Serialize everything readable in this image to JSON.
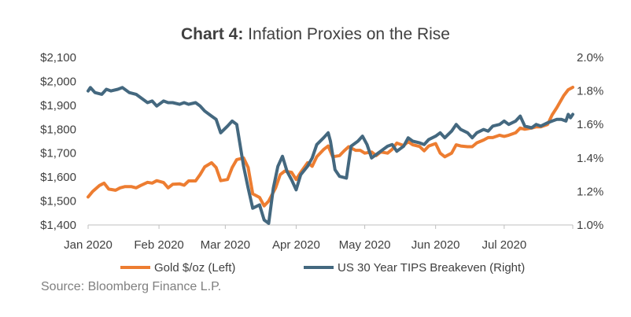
{
  "chart_data": {
    "type": "line",
    "title_bold": "Chart 4:",
    "title_rest": " Infation Proxies on the Rise",
    "xlabel": "",
    "x_ticks": [
      "Jan 2020",
      "Feb 2020",
      "Mar 2020",
      "Apr 2020",
      "May 2020",
      "Jun 2020",
      "Jul 2020"
    ],
    "y_left_ticks": [
      "$2,100",
      "$2,000",
      "$1,900",
      "$1,800",
      "$1,700",
      "$1,600",
      "$1,500",
      "$1,400"
    ],
    "y_right_ticks": [
      "2.0%",
      "1.8%",
      "1.6%",
      "1.4%",
      "1.2%",
      "1.0%"
    ],
    "ylim_left": [
      1400,
      2100
    ],
    "ylim_right": [
      1.0,
      2.0
    ],
    "xlim": [
      "2020-01-01",
      "2020-07-31"
    ],
    "legend_position": "bottom",
    "series": [
      {
        "name": "Gold $/oz (Left)",
        "axis": "left",
        "color": "#ed7d31",
        "points": [
          [
            "2020-01-01",
            1517
          ],
          [
            "2020-01-03",
            1540
          ],
          [
            "2020-01-06",
            1565
          ],
          [
            "2020-01-08",
            1575
          ],
          [
            "2020-01-10",
            1550
          ],
          [
            "2020-01-13",
            1545
          ],
          [
            "2020-01-15",
            1555
          ],
          [
            "2020-01-17",
            1560
          ],
          [
            "2020-01-20",
            1560
          ],
          [
            "2020-01-22",
            1555
          ],
          [
            "2020-01-24",
            1565
          ],
          [
            "2020-01-27",
            1578
          ],
          [
            "2020-01-29",
            1575
          ],
          [
            "2020-01-31",
            1585
          ],
          [
            "2020-02-03",
            1577
          ],
          [
            "2020-02-05",
            1555
          ],
          [
            "2020-02-07",
            1570
          ],
          [
            "2020-02-10",
            1572
          ],
          [
            "2020-02-12",
            1566
          ],
          [
            "2020-02-14",
            1584
          ],
          [
            "2020-02-17",
            1584
          ],
          [
            "2020-02-19",
            1611
          ],
          [
            "2020-02-21",
            1643
          ],
          [
            "2020-02-24",
            1660
          ],
          [
            "2020-02-26",
            1640
          ],
          [
            "2020-02-28",
            1585
          ],
          [
            "2020-03-02",
            1590
          ],
          [
            "2020-03-04",
            1640
          ],
          [
            "2020-03-06",
            1673
          ],
          [
            "2020-03-09",
            1680
          ],
          [
            "2020-03-11",
            1640
          ],
          [
            "2020-03-13",
            1530
          ],
          [
            "2020-03-16",
            1515
          ],
          [
            "2020-03-18",
            1480
          ],
          [
            "2020-03-20",
            1500
          ],
          [
            "2020-03-23",
            1555
          ],
          [
            "2020-03-25",
            1610
          ],
          [
            "2020-03-27",
            1625
          ],
          [
            "2020-03-30",
            1620
          ],
          [
            "2020-04-01",
            1590
          ],
          [
            "2020-04-03",
            1620
          ],
          [
            "2020-04-06",
            1660
          ],
          [
            "2020-04-08",
            1645
          ],
          [
            "2020-04-10",
            1685
          ],
          [
            "2020-04-13",
            1715
          ],
          [
            "2020-04-15",
            1730
          ],
          [
            "2020-04-17",
            1685
          ],
          [
            "2020-04-20",
            1690
          ],
          [
            "2020-04-22",
            1710
          ],
          [
            "2020-04-24",
            1727
          ],
          [
            "2020-04-27",
            1712
          ],
          [
            "2020-04-29",
            1712
          ],
          [
            "2020-05-01",
            1700
          ],
          [
            "2020-05-04",
            1705
          ],
          [
            "2020-05-06",
            1690
          ],
          [
            "2020-05-08",
            1705
          ],
          [
            "2020-05-11",
            1700
          ],
          [
            "2020-05-13",
            1716
          ],
          [
            "2020-05-15",
            1742
          ],
          [
            "2020-05-18",
            1732
          ],
          [
            "2020-05-20",
            1748
          ],
          [
            "2020-05-22",
            1735
          ],
          [
            "2020-05-25",
            1728
          ],
          [
            "2020-05-27",
            1710
          ],
          [
            "2020-05-29",
            1730
          ],
          [
            "2020-06-01",
            1740
          ],
          [
            "2020-06-03",
            1700
          ],
          [
            "2020-06-05",
            1685
          ],
          [
            "2020-06-08",
            1700
          ],
          [
            "2020-06-10",
            1735
          ],
          [
            "2020-06-12",
            1730
          ],
          [
            "2020-06-15",
            1727
          ],
          [
            "2020-06-17",
            1727
          ],
          [
            "2020-06-19",
            1743
          ],
          [
            "2020-06-22",
            1755
          ],
          [
            "2020-06-24",
            1765
          ],
          [
            "2020-06-26",
            1765
          ],
          [
            "2020-06-29",
            1775
          ],
          [
            "2020-07-01",
            1770
          ],
          [
            "2020-07-03",
            1775
          ],
          [
            "2020-07-06",
            1785
          ],
          [
            "2020-07-08",
            1805
          ],
          [
            "2020-07-10",
            1800
          ],
          [
            "2020-07-13",
            1805
          ],
          [
            "2020-07-15",
            1810
          ],
          [
            "2020-07-17",
            1810
          ],
          [
            "2020-07-20",
            1820
          ],
          [
            "2020-07-22",
            1860
          ],
          [
            "2020-07-24",
            1890
          ],
          [
            "2020-07-27",
            1940
          ],
          [
            "2020-07-29",
            1965
          ],
          [
            "2020-07-31",
            1975
          ]
        ]
      },
      {
        "name": "US 30 Year TIPS Breakeven (Right)",
        "axis": "right",
        "color": "#44687f",
        "points": [
          [
            "2020-01-01",
            1.8
          ],
          [
            "2020-01-02",
            1.82
          ],
          [
            "2020-01-04",
            1.79
          ],
          [
            "2020-01-07",
            1.78
          ],
          [
            "2020-01-09",
            1.81
          ],
          [
            "2020-01-11",
            1.8
          ],
          [
            "2020-01-14",
            1.81
          ],
          [
            "2020-01-16",
            1.82
          ],
          [
            "2020-01-19",
            1.79
          ],
          [
            "2020-01-22",
            1.78
          ],
          [
            "2020-01-24",
            1.76
          ],
          [
            "2020-01-27",
            1.73
          ],
          [
            "2020-01-29",
            1.74
          ],
          [
            "2020-01-31",
            1.71
          ],
          [
            "2020-02-03",
            1.74
          ],
          [
            "2020-02-05",
            1.73
          ],
          [
            "2020-02-07",
            1.73
          ],
          [
            "2020-02-10",
            1.72
          ],
          [
            "2020-02-12",
            1.73
          ],
          [
            "2020-02-14",
            1.72
          ],
          [
            "2020-02-17",
            1.73
          ],
          [
            "2020-02-19",
            1.71
          ],
          [
            "2020-02-21",
            1.68
          ],
          [
            "2020-02-24",
            1.65
          ],
          [
            "2020-02-26",
            1.63
          ],
          [
            "2020-02-28",
            1.55
          ],
          [
            "2020-03-02",
            1.59
          ],
          [
            "2020-03-04",
            1.62
          ],
          [
            "2020-03-06",
            1.6
          ],
          [
            "2020-03-09",
            1.35
          ],
          [
            "2020-03-11",
            1.22
          ],
          [
            "2020-03-13",
            1.1
          ],
          [
            "2020-03-16",
            1.12
          ],
          [
            "2020-03-18",
            1.03
          ],
          [
            "2020-03-20",
            1.01
          ],
          [
            "2020-03-22",
            1.22
          ],
          [
            "2020-03-24",
            1.35
          ],
          [
            "2020-03-26",
            1.41
          ],
          [
            "2020-03-28",
            1.32
          ],
          [
            "2020-03-30",
            1.27
          ],
          [
            "2020-04-01",
            1.21
          ],
          [
            "2020-04-03",
            1.3
          ],
          [
            "2020-04-06",
            1.35
          ],
          [
            "2020-04-08",
            1.4
          ],
          [
            "2020-04-10",
            1.48
          ],
          [
            "2020-04-13",
            1.52
          ],
          [
            "2020-04-15",
            1.55
          ],
          [
            "2020-04-16",
            1.5
          ],
          [
            "2020-04-18",
            1.33
          ],
          [
            "2020-04-20",
            1.29
          ],
          [
            "2020-04-23",
            1.28
          ],
          [
            "2020-04-25",
            1.47
          ],
          [
            "2020-04-28",
            1.5
          ],
          [
            "2020-04-30",
            1.53
          ],
          [
            "2020-05-02",
            1.48
          ],
          [
            "2020-05-04",
            1.4
          ],
          [
            "2020-05-06",
            1.42
          ],
          [
            "2020-05-08",
            1.44
          ],
          [
            "2020-05-11",
            1.47
          ],
          [
            "2020-05-13",
            1.48
          ],
          [
            "2020-05-15",
            1.44
          ],
          [
            "2020-05-18",
            1.47
          ],
          [
            "2020-05-20",
            1.52
          ],
          [
            "2020-05-22",
            1.5
          ],
          [
            "2020-05-25",
            1.49
          ],
          [
            "2020-05-27",
            1.48
          ],
          [
            "2020-05-29",
            1.51
          ],
          [
            "2020-06-01",
            1.53
          ],
          [
            "2020-06-03",
            1.55
          ],
          [
            "2020-06-05",
            1.52
          ],
          [
            "2020-06-08",
            1.56
          ],
          [
            "2020-06-10",
            1.6
          ],
          [
            "2020-06-12",
            1.57
          ],
          [
            "2020-06-15",
            1.55
          ],
          [
            "2020-06-17",
            1.52
          ],
          [
            "2020-06-19",
            1.55
          ],
          [
            "2020-06-22",
            1.57
          ],
          [
            "2020-06-24",
            1.56
          ],
          [
            "2020-06-26",
            1.59
          ],
          [
            "2020-06-29",
            1.6
          ],
          [
            "2020-07-01",
            1.62
          ],
          [
            "2020-07-03",
            1.6
          ],
          [
            "2020-07-06",
            1.62
          ],
          [
            "2020-07-08",
            1.65
          ],
          [
            "2020-07-10",
            1.59
          ],
          [
            "2020-07-13",
            1.58
          ],
          [
            "2020-07-15",
            1.6
          ],
          [
            "2020-07-17",
            1.59
          ],
          [
            "2020-07-20",
            1.61
          ],
          [
            "2020-07-22",
            1.62
          ],
          [
            "2020-07-24",
            1.63
          ],
          [
            "2020-07-26",
            1.63
          ],
          [
            "2020-07-28",
            1.62
          ],
          [
            "2020-07-29",
            1.66
          ],
          [
            "2020-07-30",
            1.64
          ],
          [
            "2020-07-31",
            1.66
          ]
        ]
      }
    ]
  },
  "source": "Source: Bloomberg Finance L.P."
}
